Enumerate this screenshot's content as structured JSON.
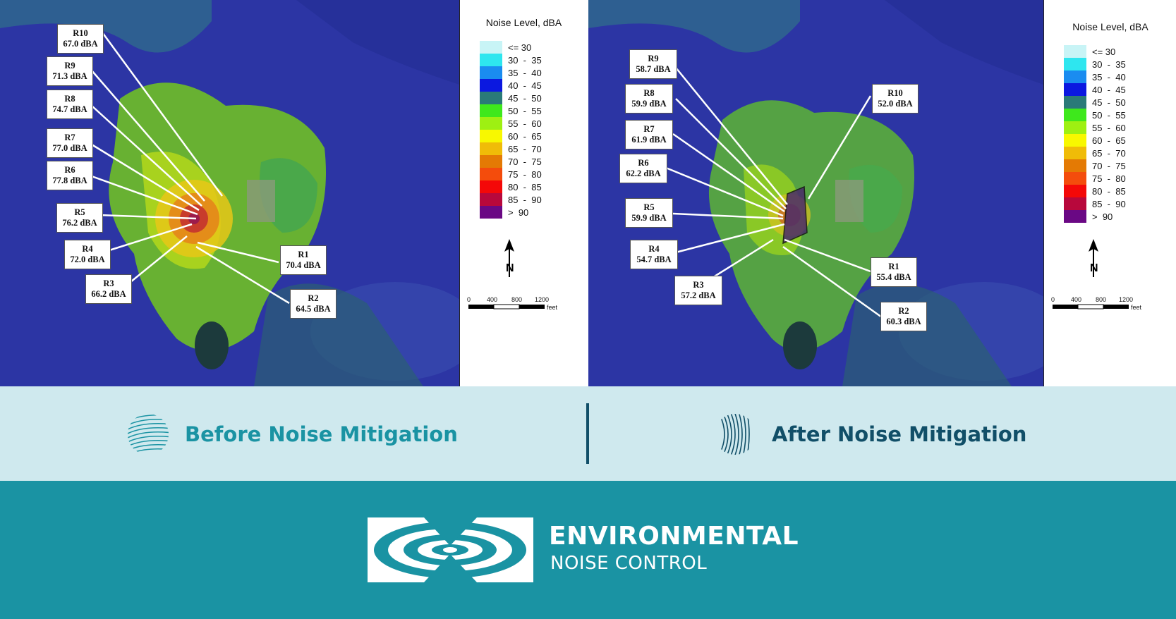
{
  "legend": {
    "title": "Noise Level, dBA",
    "ranges": [
      {
        "label": "<= 30",
        "color": "#c8f4f6"
      },
      {
        "label": "30  -  35",
        "color": "#2ee6ef"
      },
      {
        "label": "35  -  40",
        "color": "#1a8cf0"
      },
      {
        "label": "40  -  45",
        "color": "#0b18e0"
      },
      {
        "label": "45  -  50",
        "color": "#2a7a78"
      },
      {
        "label": "50  -  55",
        "color": "#3ee81c"
      },
      {
        "label": "55  -  60",
        "color": "#9ef012"
      },
      {
        "label": "60  -  65",
        "color": "#f8f800"
      },
      {
        "label": "65  -  70",
        "color": "#f0bc08"
      },
      {
        "label": "70  -  75",
        "color": "#e47a04"
      },
      {
        "label": "75  -  80",
        "color": "#f44c0c"
      },
      {
        "label": "80  -  85",
        "color": "#f40808"
      },
      {
        "label": "85  -  90",
        "color": "#b8083c"
      },
      {
        "label": ">  90",
        "color": "#6a0884"
      }
    ],
    "scale_ticks": [
      "0",
      "400",
      "800",
      "1200"
    ],
    "scale_unit": "feet",
    "north_label": "N"
  },
  "before": {
    "caption": "Before Noise Mitigation",
    "receptors": [
      {
        "id": "R10",
        "value": "67.0 dBA"
      },
      {
        "id": "R9",
        "value": "71.3 dBA"
      },
      {
        "id": "R8",
        "value": "74.7 dBA"
      },
      {
        "id": "R7",
        "value": "77.0 dBA"
      },
      {
        "id": "R6",
        "value": "77.8 dBA"
      },
      {
        "id": "R5",
        "value": "76.2 dBA"
      },
      {
        "id": "R4",
        "value": "72.0 dBA"
      },
      {
        "id": "R3",
        "value": "66.2 dBA"
      },
      {
        "id": "R1",
        "value": "70.4 dBA"
      },
      {
        "id": "R2",
        "value": "64.5 dBA"
      }
    ]
  },
  "after": {
    "caption": "After Noise Mitigation",
    "receptors": [
      {
        "id": "R9",
        "value": "58.7 dBA"
      },
      {
        "id": "R10",
        "value": "52.0 dBA"
      },
      {
        "id": "R8",
        "value": "59.9 dBA"
      },
      {
        "id": "R7",
        "value": "61.9 dBA"
      },
      {
        "id": "R6",
        "value": "62.2 dBA"
      },
      {
        "id": "R5",
        "value": "59.9 dBA"
      },
      {
        "id": "R4",
        "value": "54.7 dBA"
      },
      {
        "id": "R3",
        "value": "57.2 dBA"
      },
      {
        "id": "R1",
        "value": "55.4 dBA"
      },
      {
        "id": "R2",
        "value": "60.3 dBA"
      }
    ]
  },
  "brand": {
    "line1": "ENVIRONMENTAL",
    "line2": "NOISE CONTROL",
    "primary_color": "#1a93a3",
    "dark_color": "#114f68",
    "band_color": "#cfe9ee"
  }
}
